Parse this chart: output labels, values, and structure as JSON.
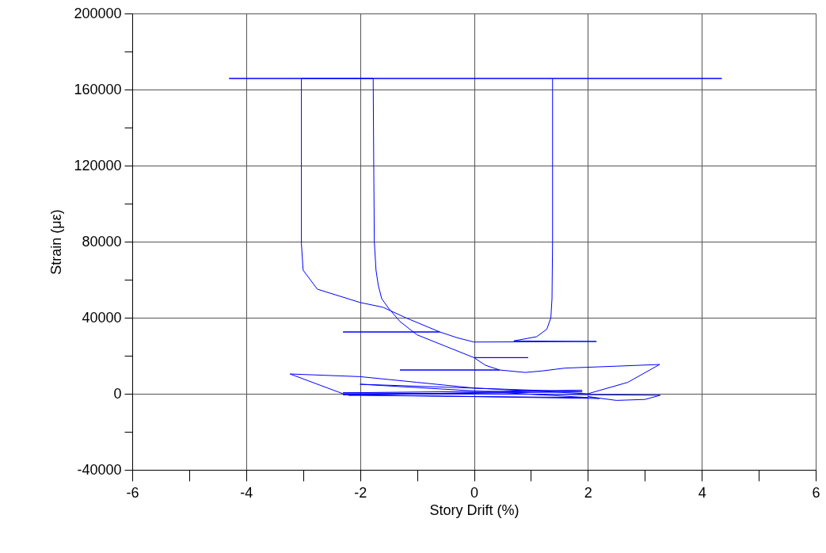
{
  "chart_data": {
    "type": "line",
    "xlabel": "Story Drift (%)",
    "ylabel": "Strain (με)",
    "xlim": [
      -6,
      6
    ],
    "ylim": [
      -40000,
      200000
    ],
    "xticks": [
      -6,
      {
        "value": -5,
        "label": null
      },
      -4,
      {
        "value": -3,
        "label": null
      },
      -2,
      {
        "value": -1,
        "label": null
      },
      0,
      {
        "value": 1,
        "label": null
      },
      2,
      {
        "value": 3,
        "label": null
      },
      4,
      {
        "value": 5,
        "label": null
      },
      6
    ],
    "yticks": [
      -40000,
      {
        "value": -20000,
        "label": null
      },
      0,
      {
        "value": 20000,
        "label": null
      },
      40000,
      {
        "value": 60000,
        "label": null
      },
      80000,
      {
        "value": 100000,
        "label": null
      },
      120000,
      {
        "value": 140000,
        "label": null
      },
      160000,
      {
        "value": 180000,
        "label": null
      },
      200000
    ],
    "grid": true,
    "marker": "none",
    "line_style": "solid",
    "series": [
      {
        "color": "#0000ff",
        "x": [
          0,
          -2.3,
          1.9,
          -2.2,
          2.0,
          -2.0,
          1.9,
          -2.3,
          2.2,
          2.0,
          2.5,
          3.0,
          3.27,
          2.0,
          0,
          -2.3,
          -3.23,
          -2,
          -1,
          0,
          1,
          2,
          2.7,
          3.26,
          2.5,
          1.6,
          1.2,
          0.9,
          0.45,
          -1.3,
          0.45,
          0.2,
          0,
          0.95,
          0,
          -0.5,
          -1.0,
          -1.3,
          -1.5,
          -1.62,
          -1.68,
          -1.72,
          -1.75,
          -1.76,
          -1.77,
          -4.3,
          4.35,
          -3.03,
          -3.03,
          -3.0,
          -2.75,
          -2.0,
          -1.6,
          -1.2,
          -0.6,
          -2.3,
          -0.6,
          -0.3,
          0,
          2.15,
          0.7,
          1.1,
          1.28,
          1.35,
          1.37,
          1.38,
          1.38
        ],
        "values": [
          0,
          500,
          1800,
          -800,
          -2000,
          5000,
          1000,
          -500,
          -2500,
          -1500,
          -3500,
          -3000,
          -800,
          -500,
          0,
          0,
          10400,
          9000,
          6000,
          3000,
          1500,
          0,
          6000,
          15400,
          14500,
          13500,
          12000,
          11200,
          12500,
          12500,
          12500,
          15000,
          19000,
          19000,
          19000,
          25000,
          31000,
          38000,
          45000,
          50000,
          57000,
          65000,
          80000,
          120000,
          165800,
          165800,
          165800,
          165800,
          79000,
          65000,
          55000,
          48000,
          45500,
          40000,
          32500,
          32500,
          32500,
          29500,
          27200,
          27500,
          27800,
          30000,
          34000,
          40000,
          50000,
          80000,
          165800
        ]
      }
    ]
  }
}
